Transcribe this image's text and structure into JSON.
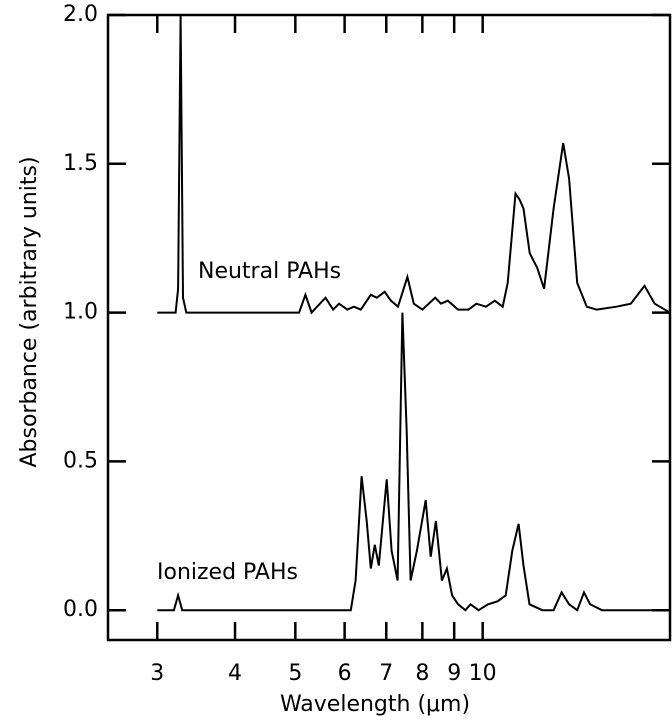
{
  "chart_data": {
    "type": "line",
    "x_label": "Wavelength (μm)",
    "y_label": "Absorbance (arbitrary units)",
    "xscale": "log",
    "xlim": [
      2.5,
      20
    ],
    "xticks": [
      3,
      4,
      5,
      6,
      7,
      8,
      9,
      10
    ],
    "ylim": [
      -0.1,
      2.0
    ],
    "yticks": [
      {
        "value": 0,
        "label": "0.0"
      },
      {
        "value": 0.5,
        "label": "0.5"
      },
      {
        "value": 1,
        "label": "1.0"
      },
      {
        "value": 1.5,
        "label": "1.5"
      },
      {
        "value": 2,
        "label": "2.0"
      }
    ],
    "series": [
      {
        "name": "Neutral PAHs",
        "color": "#000000",
        "x": [
          3.0,
          3.21,
          3.24,
          3.27,
          3.3,
          3.34,
          5.07,
          5.19,
          5.31,
          5.59,
          5.75,
          5.88,
          6.06,
          6.21,
          6.37,
          6.61,
          6.76,
          6.96,
          7.12,
          7.31,
          7.57,
          7.75,
          8.0,
          8.39,
          8.57,
          8.79,
          9.13,
          9.49,
          9.77,
          10.12,
          10.46,
          10.77,
          10.97,
          11.29,
          11.46,
          11.63,
          11.9,
          12.24,
          12.55,
          13.0,
          13.47,
          13.77,
          14.19,
          14.7,
          15.25,
          16.4,
          17.3,
          18.2,
          18.9,
          20
        ],
        "values": [
          1.0,
          1.0,
          1.08,
          2.0,
          1.05,
          1.0,
          1.0,
          1.06,
          1.0,
          1.05,
          1.01,
          1.03,
          1.01,
          1.02,
          1.01,
          1.06,
          1.05,
          1.07,
          1.04,
          1.02,
          1.12,
          1.03,
          1.01,
          1.05,
          1.03,
          1.04,
          1.01,
          1.01,
          1.03,
          1.02,
          1.04,
          1.02,
          1.1,
          1.4,
          1.38,
          1.35,
          1.2,
          1.15,
          1.08,
          1.35,
          1.57,
          1.45,
          1.1,
          1.02,
          1.01,
          1.02,
          1.03,
          1.09,
          1.03,
          1.0
        ]
      },
      {
        "name": "Ionized PAHs",
        "color": "#000000",
        "x": [
          3.0,
          3.19,
          3.24,
          3.29,
          6.14,
          6.25,
          6.39,
          6.51,
          6.61,
          6.71,
          6.81,
          7.01,
          7.14,
          7.3,
          7.43,
          7.55,
          7.66,
          7.84,
          8.1,
          8.25,
          8.41,
          8.6,
          8.76,
          8.93,
          9.13,
          9.38,
          9.56,
          9.85,
          10.2,
          10.57,
          10.89,
          11.16,
          11.42,
          11.63,
          11.89,
          12.47,
          13.0,
          13.39,
          13.77,
          14.19,
          14.55,
          14.88,
          15.55,
          20
        ],
        "values": [
          0,
          0,
          0.05,
          0,
          0,
          0.1,
          0.45,
          0.3,
          0.14,
          0.22,
          0.15,
          0.44,
          0.2,
          0.1,
          1.0,
          0.6,
          0.1,
          0.2,
          0.37,
          0.18,
          0.3,
          0.1,
          0.14,
          0.05,
          0.02,
          0,
          0.02,
          0,
          0.02,
          0.03,
          0.05,
          0.2,
          0.29,
          0.15,
          0.02,
          0,
          0,
          0.06,
          0.02,
          0,
          0.06,
          0.02,
          0,
          0
        ]
      }
    ]
  }
}
